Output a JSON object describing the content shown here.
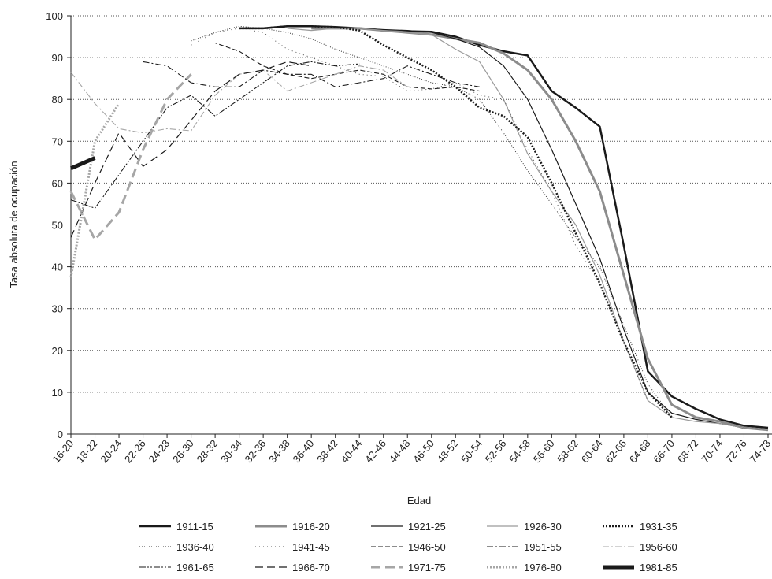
{
  "chart_data": {
    "type": "line",
    "x_label": "Edad",
    "y_label": "Tasa absoluta de ocupación",
    "categories": [
      "16-20",
      "18-22",
      "20-24",
      "22-26",
      "24-28",
      "26-30",
      "28-32",
      "30-34",
      "32-36",
      "34-38",
      "36-40",
      "38-42",
      "40-44",
      "42-46",
      "44-48",
      "46-50",
      "48-52",
      "50-54",
      "52-56",
      "54-58",
      "56-60",
      "58-62",
      "60-64",
      "62-66",
      "64-68",
      "66-70",
      "68-72",
      "70-74",
      "72-76",
      "74-78"
    ],
    "ylim": [
      0,
      100
    ],
    "yticks": [
      0,
      10,
      20,
      30,
      40,
      50,
      60,
      70,
      80,
      90,
      100
    ],
    "grid": true,
    "series": [
      {
        "name": "1911-15",
        "color": "#1a1a1a",
        "width": 2.5,
        "dash": "none",
        "values": [
          null,
          null,
          null,
          null,
          null,
          null,
          null,
          97,
          97,
          97.5,
          97.5,
          97.3,
          97,
          96.5,
          96.3,
          96.2,
          95,
          93,
          91.5,
          90.5,
          82,
          78,
          73.5,
          45,
          15,
          9,
          6,
          3.5,
          2,
          1.5
        ]
      },
      {
        "name": "1916-20",
        "color": "#8c8c8c",
        "width": 3,
        "dash": "none",
        "values": [
          null,
          null,
          null,
          null,
          null,
          null,
          null,
          null,
          null,
          null,
          97,
          97,
          97,
          96.5,
          96,
          95.5,
          94.5,
          93.5,
          91,
          87,
          80,
          70,
          58,
          38,
          18,
          7,
          4,
          3,
          1.5,
          1
        ]
      },
      {
        "name": "1921-25",
        "color": "#1a1a1a",
        "width": 1.2,
        "dash": "none",
        "values": [
          null,
          null,
          null,
          null,
          null,
          null,
          null,
          null,
          null,
          null,
          97.5,
          97.3,
          97,
          96.7,
          96.5,
          96,
          94.5,
          92.5,
          88,
          80,
          68,
          55,
          42,
          25,
          10,
          5,
          3.5,
          2.5,
          1.5,
          1
        ]
      },
      {
        "name": "1926-30",
        "color": "#9a9a9a",
        "width": 1.2,
        "dash": "none",
        "values": [
          null,
          null,
          null,
          null,
          null,
          null,
          null,
          null,
          null,
          97,
          96.5,
          97,
          97,
          96.5,
          96,
          95.5,
          92,
          89,
          80,
          67,
          58,
          50,
          38,
          22,
          8,
          4,
          3,
          2.5,
          1.5,
          1
        ]
      },
      {
        "name": "1931-35",
        "color": "#1a1a1a",
        "width": 2.5,
        "dash": "2,2",
        "values": [
          null,
          null,
          null,
          null,
          null,
          null,
          null,
          97,
          97,
          97.5,
          97.5,
          97.3,
          96.5,
          93,
          90,
          87,
          83,
          78,
          76,
          71,
          60,
          48,
          36,
          22,
          10,
          4,
          null,
          null,
          null,
          null
        ]
      },
      {
        "name": "1936-40",
        "color": "#333333",
        "width": 1,
        "dash": "1,2",
        "values": [
          null,
          null,
          null,
          null,
          null,
          94,
          96,
          97.5,
          97,
          96,
          94.5,
          92,
          90,
          88,
          86,
          84,
          83,
          80,
          72,
          63,
          55,
          47,
          40,
          26,
          12,
          4,
          null,
          null,
          null,
          null
        ]
      },
      {
        "name": "1941-45",
        "color": "#555555",
        "width": 1,
        "dash": "1,4",
        "values": [
          null,
          null,
          null,
          null,
          null,
          93,
          96,
          97,
          96,
          92,
          90,
          88,
          86,
          85.5,
          82,
          82.5,
          84,
          81,
          80,
          68,
          58,
          45,
          36,
          22,
          8,
          null,
          null,
          null,
          null,
          null
        ]
      },
      {
        "name": "1946-50",
        "color": "#1a1a1a",
        "width": 1.1,
        "dash": "6,3",
        "values": [
          null,
          null,
          null,
          null,
          null,
          93.5,
          93.5,
          91.5,
          88,
          86,
          85,
          86,
          87,
          86,
          83,
          82.5,
          83,
          82,
          null,
          null,
          null,
          null,
          null,
          null,
          null,
          null,
          null,
          null,
          null,
          null
        ]
      },
      {
        "name": "1951-55",
        "color": "#1a1a1a",
        "width": 1.1,
        "dash": "8,3,2,3",
        "values": [
          null,
          null,
          null,
          89,
          88,
          84,
          83,
          83,
          87,
          86,
          86,
          83,
          84,
          85,
          88,
          86,
          84,
          83,
          null,
          null,
          null,
          null,
          null,
          null,
          null,
          null,
          null,
          null,
          null,
          null
        ]
      },
      {
        "name": "1956-60",
        "color": "#a6a6a6",
        "width": 1.1,
        "dash": "8,3,2,3",
        "values": [
          86.5,
          79,
          73,
          72,
          73,
          72.5,
          81,
          86,
          87,
          82,
          84,
          86,
          88,
          87,
          83,
          null,
          null,
          null,
          null,
          null,
          null,
          null,
          null,
          null,
          null,
          null,
          null,
          null,
          null,
          null
        ]
      },
      {
        "name": "1961-65",
        "color": "#1a1a1a",
        "width": 1.1,
        "dash": "8,2,2,2,2,2",
        "values": [
          56,
          54,
          62,
          70,
          78,
          81,
          76,
          80,
          84,
          88,
          89,
          88,
          88.5,
          null,
          null,
          null,
          null,
          null,
          null,
          null,
          null,
          null,
          null,
          null,
          null,
          null,
          null,
          null,
          null,
          null
        ]
      },
      {
        "name": "1966-70",
        "color": "#1a1a1a",
        "width": 1.2,
        "dash": "10,5",
        "values": [
          47,
          60,
          72,
          64,
          68,
          75,
          82,
          86,
          87,
          89,
          88,
          null,
          null,
          null,
          null,
          null,
          null,
          null,
          null,
          null,
          null,
          null,
          null,
          null,
          null,
          null,
          null,
          null,
          null,
          null
        ]
      },
      {
        "name": "1971-75",
        "color": "#a6a6a6",
        "width": 3,
        "dash": "12,6",
        "values": [
          58,
          46.5,
          53,
          68,
          80,
          86,
          null,
          null,
          null,
          null,
          null,
          null,
          null,
          null,
          null,
          null,
          null,
          null,
          null,
          null,
          null,
          null,
          null,
          null,
          null,
          null,
          null,
          null,
          null,
          null
        ]
      },
      {
        "name": "1976-80",
        "color": "#a6a6a6",
        "width": 3,
        "dash": "2,2",
        "values": [
          37.5,
          70,
          79,
          null,
          null,
          null,
          null,
          null,
          null,
          null,
          null,
          null,
          null,
          null,
          null,
          null,
          null,
          null,
          null,
          null,
          null,
          null,
          null,
          null,
          null,
          null,
          null,
          null,
          null,
          null
        ]
      },
      {
        "name": "1981-85",
        "color": "#1a1a1a",
        "width": 5,
        "dash": "none",
        "values": [
          63.5,
          66,
          null,
          null,
          null,
          null,
          null,
          null,
          null,
          null,
          null,
          null,
          null,
          null,
          null,
          null,
          null,
          null,
          null,
          null,
          null,
          null,
          null,
          null,
          null,
          null,
          null,
          null,
          null,
          null
        ]
      }
    ]
  }
}
